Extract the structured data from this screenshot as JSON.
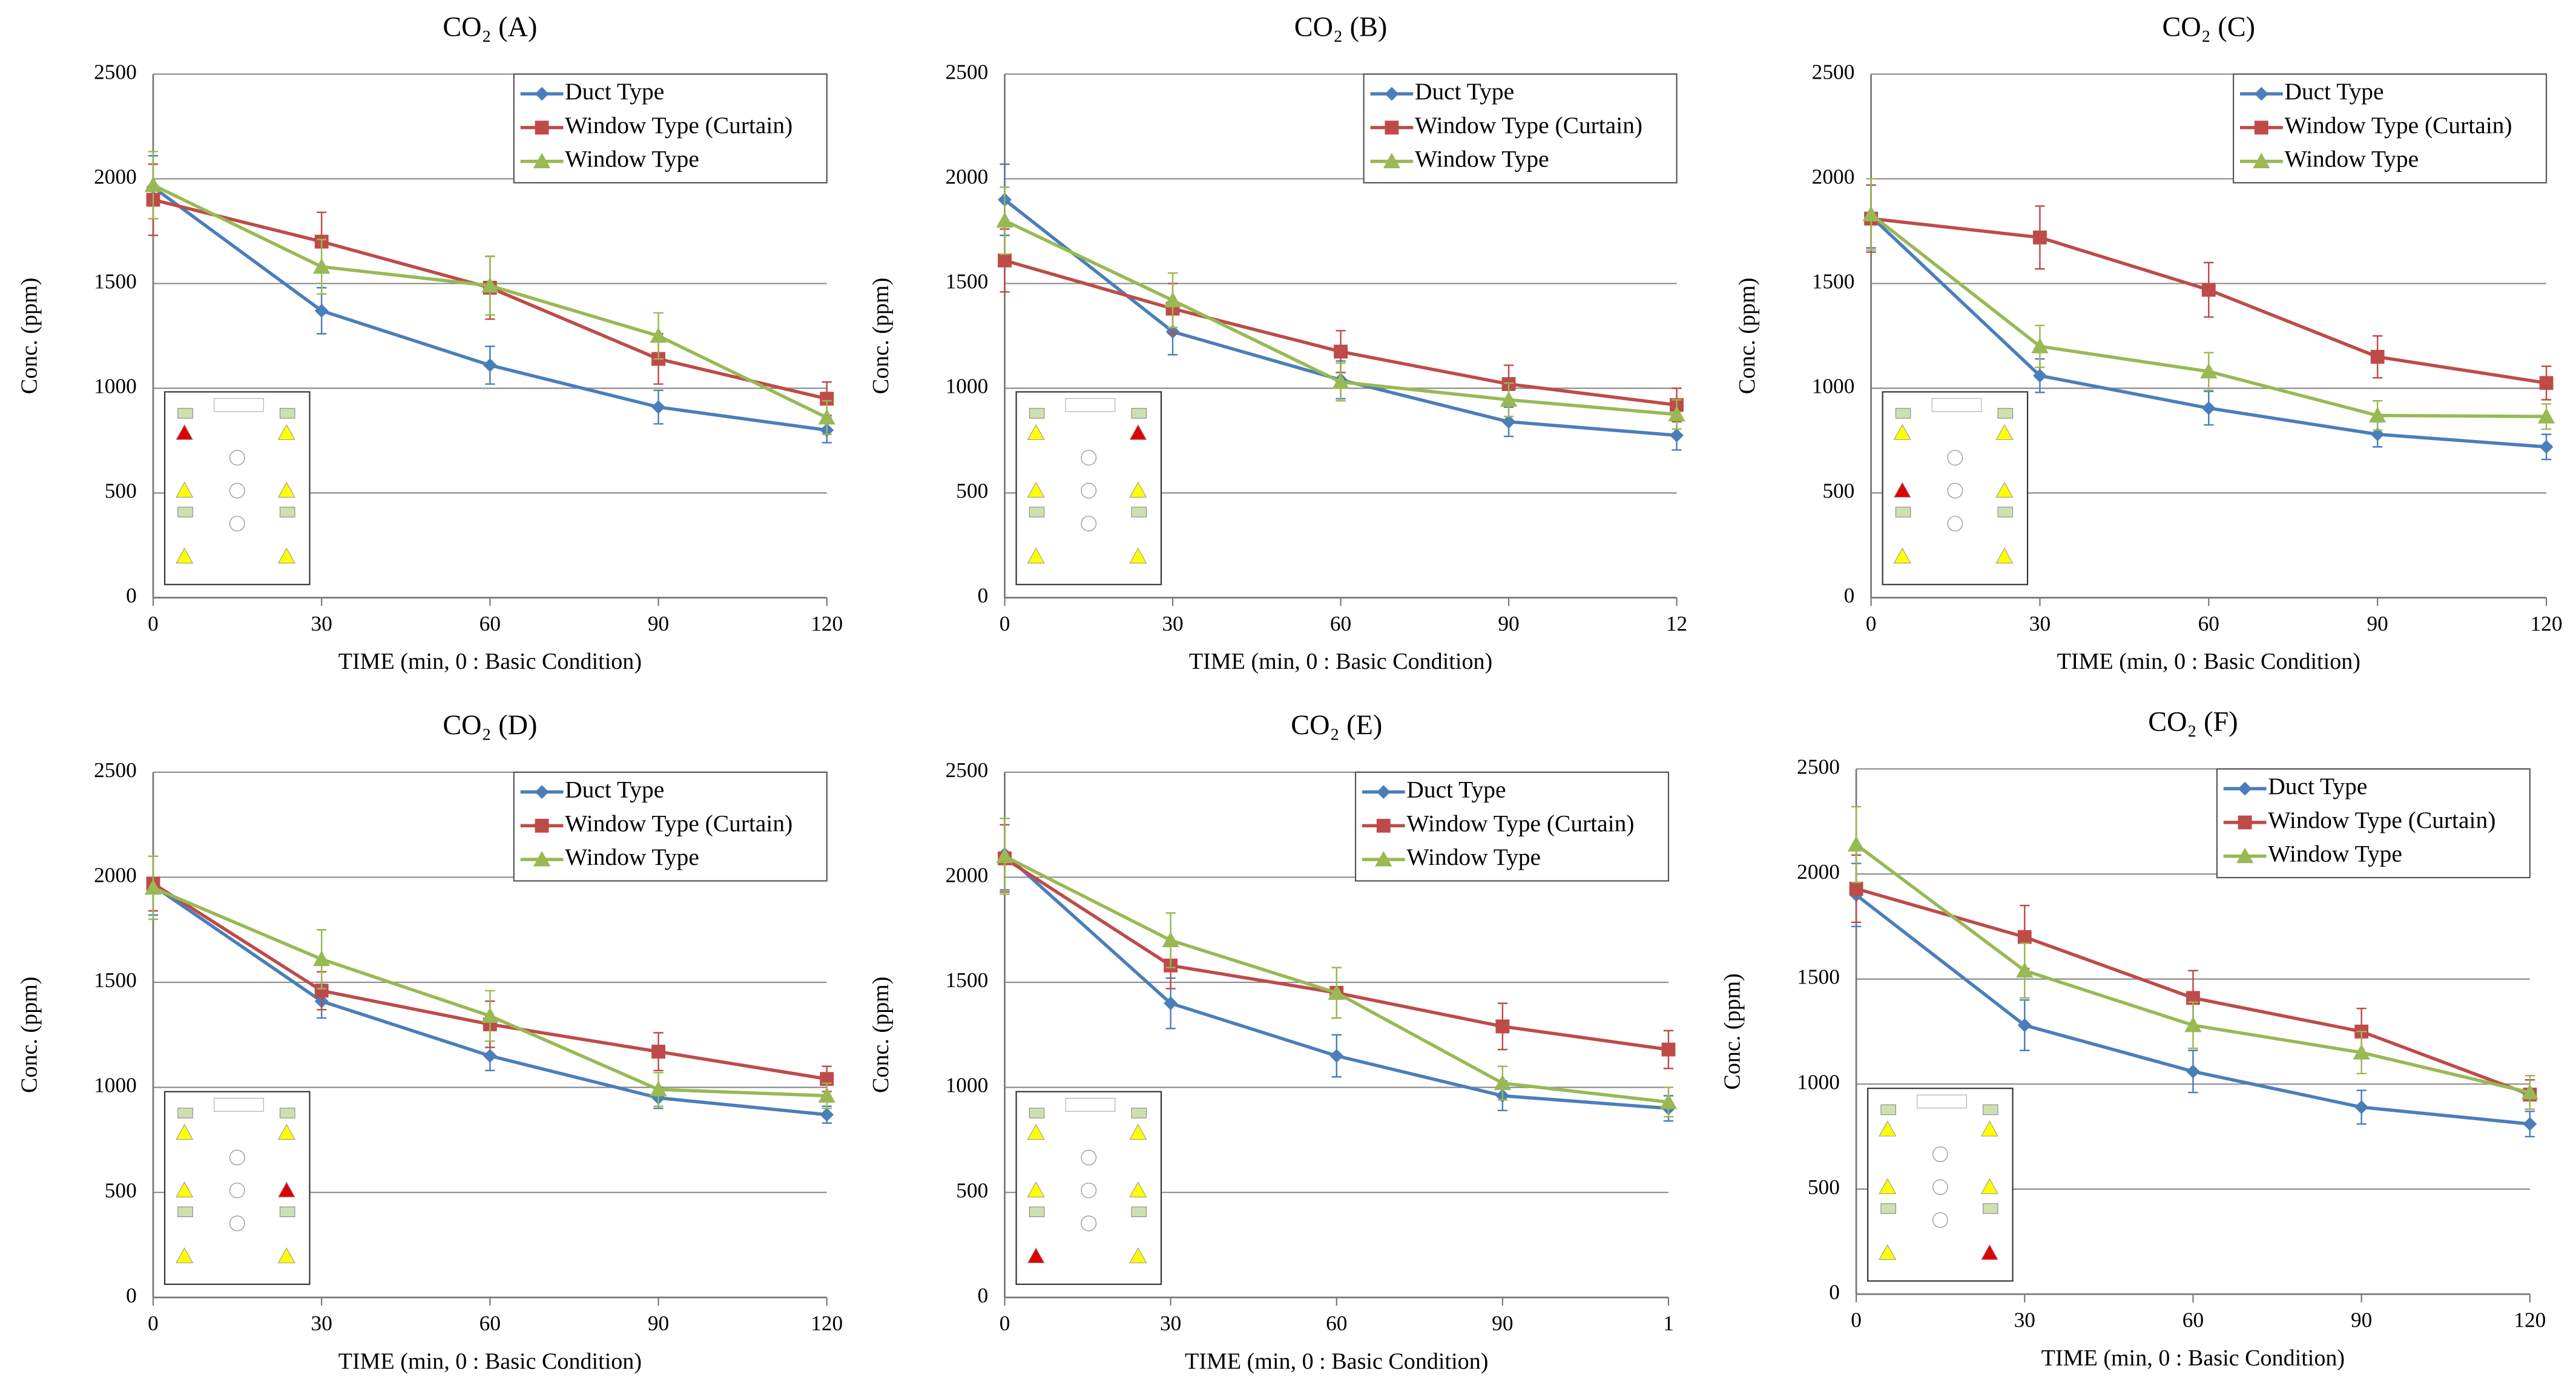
{
  "chart_data": [
    {
      "type": "line",
      "title": "CO₂ (A)",
      "xlabel": "TIME (min, 0 : Basic Condition)",
      "ylabel": "Conc. (ppm)",
      "x": [
        0,
        30,
        60,
        90,
        120
      ],
      "xlim": [
        0,
        120
      ],
      "xticks": [
        0,
        30,
        60,
        90,
        120
      ],
      "ylim": [
        0,
        2500
      ],
      "yticks": [
        0,
        500,
        1000,
        1500,
        2000,
        2500
      ],
      "grid": true,
      "legend": "upper right",
      "series": [
        {
          "name": "Duct Type",
          "color": "#4a7ebb",
          "marker": "diamond",
          "values": [
            1960,
            1370,
            1110,
            910,
            800
          ],
          "errors": [
            150,
            110,
            90,
            80,
            60
          ]
        },
        {
          "name": "Window Type (Curtain)",
          "color": "#be4b48",
          "marker": "square",
          "values": [
            1900,
            1700,
            1480,
            1140,
            950
          ],
          "errors": [
            170,
            140,
            150,
            120,
            80
          ]
        },
        {
          "name": "Window Type",
          "color": "#98b954",
          "marker": "triangle",
          "values": [
            1970,
            1580,
            1490,
            1250,
            860
          ],
          "errors": [
            160,
            130,
            140,
            110,
            80
          ]
        }
      ]
    },
    {
      "type": "line",
      "title": "CO₂ (B)",
      "xlabel": "TIME (min, 0 : Basic Condition)",
      "ylabel": "Conc. (ppm)",
      "x": [
        0,
        30,
        60,
        90,
        120
      ],
      "xlim": [
        0,
        120
      ],
      "xticks": [
        0,
        30,
        60,
        90,
        {
          "value": 120,
          "label": "12"
        }
      ],
      "ylim": [
        0,
        2500
      ],
      "yticks": [
        0,
        500,
        1000,
        1500,
        2000,
        2500
      ],
      "grid": true,
      "legend": "upper right",
      "series": [
        {
          "name": "Duct Type",
          "color": "#4a7ebb",
          "marker": "diamond",
          "values": [
            1900,
            1270,
            1040,
            840,
            775
          ],
          "errors": [
            170,
            110,
            90,
            70,
            70
          ]
        },
        {
          "name": "Window Type (Curtain)",
          "color": "#be4b48",
          "marker": "square",
          "values": [
            1610,
            1380,
            1175,
            1020,
            920
          ],
          "errors": [
            150,
            120,
            100,
            90,
            80
          ]
        },
        {
          "name": "Window Type",
          "color": "#98b954",
          "marker": "triangle",
          "values": [
            1800,
            1420,
            1030,
            945,
            875
          ],
          "errors": [
            160,
            130,
            90,
            80,
            70
          ]
        }
      ]
    },
    {
      "type": "line",
      "title": "CO₂ (C)",
      "xlabel": "TIME (min, 0 : Basic Condition)",
      "ylabel": "Conc. (ppm)",
      "x": [
        0,
        30,
        60,
        90,
        120
      ],
      "xlim": [
        0,
        120
      ],
      "xticks": [
        0,
        30,
        60,
        90,
        120
      ],
      "ylim": [
        0,
        2500
      ],
      "yticks": [
        0,
        500,
        1000,
        1500,
        2000,
        2500
      ],
      "grid": true,
      "legend": "upper right",
      "series": [
        {
          "name": "Duct Type",
          "color": "#4a7ebb",
          "marker": "diamond",
          "values": [
            1820,
            1060,
            905,
            780,
            720
          ],
          "errors": [
            150,
            80,
            80,
            60,
            60
          ]
        },
        {
          "name": "Window Type (Curtain)",
          "color": "#be4b48",
          "marker": "square",
          "values": [
            1810,
            1720,
            1470,
            1150,
            1025
          ],
          "errors": [
            160,
            150,
            130,
            100,
            80
          ]
        },
        {
          "name": "Window Type",
          "color": "#98b954",
          "marker": "triangle",
          "values": [
            1830,
            1200,
            1080,
            870,
            865
          ],
          "errors": [
            170,
            100,
            90,
            70,
            60
          ]
        }
      ]
    },
    {
      "type": "line",
      "title": "CO₂ (D)",
      "xlabel": "TIME (min, 0 : Basic Condition)",
      "ylabel": "Conc. (ppm)",
      "x": [
        0,
        30,
        60,
        90,
        120
      ],
      "xlim": [
        0,
        120
      ],
      "xticks": [
        0,
        30,
        60,
        90,
        120
      ],
      "ylim": [
        0,
        2500
      ],
      "yticks": [
        0,
        500,
        1000,
        1500,
        2000,
        2500
      ],
      "grid": true,
      "legend": "upper right",
      "series": [
        {
          "name": "Duct Type",
          "color": "#4a7ebb",
          "marker": "diamond",
          "values": [
            1960,
            1410,
            1150,
            950,
            870
          ],
          "errors": [
            140,
            80,
            70,
            50,
            40
          ]
        },
        {
          "name": "Window Type (Curtain)",
          "color": "#be4b48",
          "marker": "square",
          "values": [
            1970,
            1460,
            1300,
            1170,
            1040
          ],
          "errors": [
            130,
            90,
            110,
            90,
            60
          ]
        },
        {
          "name": "Window Type",
          "color": "#98b954",
          "marker": "triangle",
          "values": [
            1950,
            1610,
            1340,
            990,
            960
          ],
          "errors": [
            150,
            140,
            120,
            80,
            60
          ]
        }
      ]
    },
    {
      "type": "line",
      "title": "CO₂ (E)",
      "xlabel": "TIME (min, 0 : Basic Condition)",
      "ylabel": "Conc. (ppm)",
      "x": [
        0,
        30,
        60,
        90,
        120
      ],
      "xlim": [
        0,
        120
      ],
      "xticks": [
        0,
        30,
        60,
        90,
        {
          "value": 120,
          "label": "1"
        }
      ],
      "ylim": [
        0,
        2500
      ],
      "yticks": [
        0,
        500,
        1000,
        1500,
        2000,
        2500
      ],
      "grid": true,
      "legend": "upper right",
      "series": [
        {
          "name": "Duct Type",
          "color": "#4a7ebb",
          "marker": "diamond",
          "values": [
            2110,
            1400,
            1150,
            960,
            900
          ],
          "errors": [
            170,
            120,
            100,
            70,
            60
          ]
        },
        {
          "name": "Window Type (Curtain)",
          "color": "#be4b48",
          "marker": "square",
          "values": [
            2090,
            1580,
            1450,
            1290,
            1180
          ],
          "errors": [
            160,
            110,
            120,
            110,
            90
          ]
        },
        {
          "name": "Window Type",
          "color": "#98b954",
          "marker": "triangle",
          "values": [
            2100,
            1700,
            1450,
            1020,
            930
          ],
          "errors": [
            180,
            130,
            120,
            80,
            70
          ]
        }
      ]
    },
    {
      "type": "line",
      "title": "CO₂ (F)",
      "xlabel": "TIME (min, 0 : Basic Condition)",
      "ylabel": "Conc. (ppm)",
      "x": [
        0,
        30,
        60,
        90,
        120
      ],
      "xlim": [
        0,
        120
      ],
      "xticks": [
        0,
        30,
        60,
        90,
        120
      ],
      "ylim": [
        0,
        2500
      ],
      "yticks": [
        0,
        500,
        1000,
        1500,
        2000,
        2500
      ],
      "grid": true,
      "legend": "upper right",
      "series": [
        {
          "name": "Duct Type",
          "color": "#4a7ebb",
          "marker": "diamond",
          "values": [
            1900,
            1280,
            1060,
            890,
            810
          ],
          "errors": [
            150,
            120,
            100,
            80,
            60
          ]
        },
        {
          "name": "Window Type (Curtain)",
          "color": "#be4b48",
          "marker": "square",
          "values": [
            1930,
            1700,
            1410,
            1250,
            950
          ],
          "errors": [
            160,
            150,
            130,
            110,
            70
          ]
        },
        {
          "name": "Window Type",
          "color": "#98b954",
          "marker": "triangle",
          "values": [
            2140,
            1540,
            1280,
            1150,
            960
          ],
          "errors": [
            180,
            130,
            110,
            100,
            80
          ]
        }
      ]
    }
  ]
}
